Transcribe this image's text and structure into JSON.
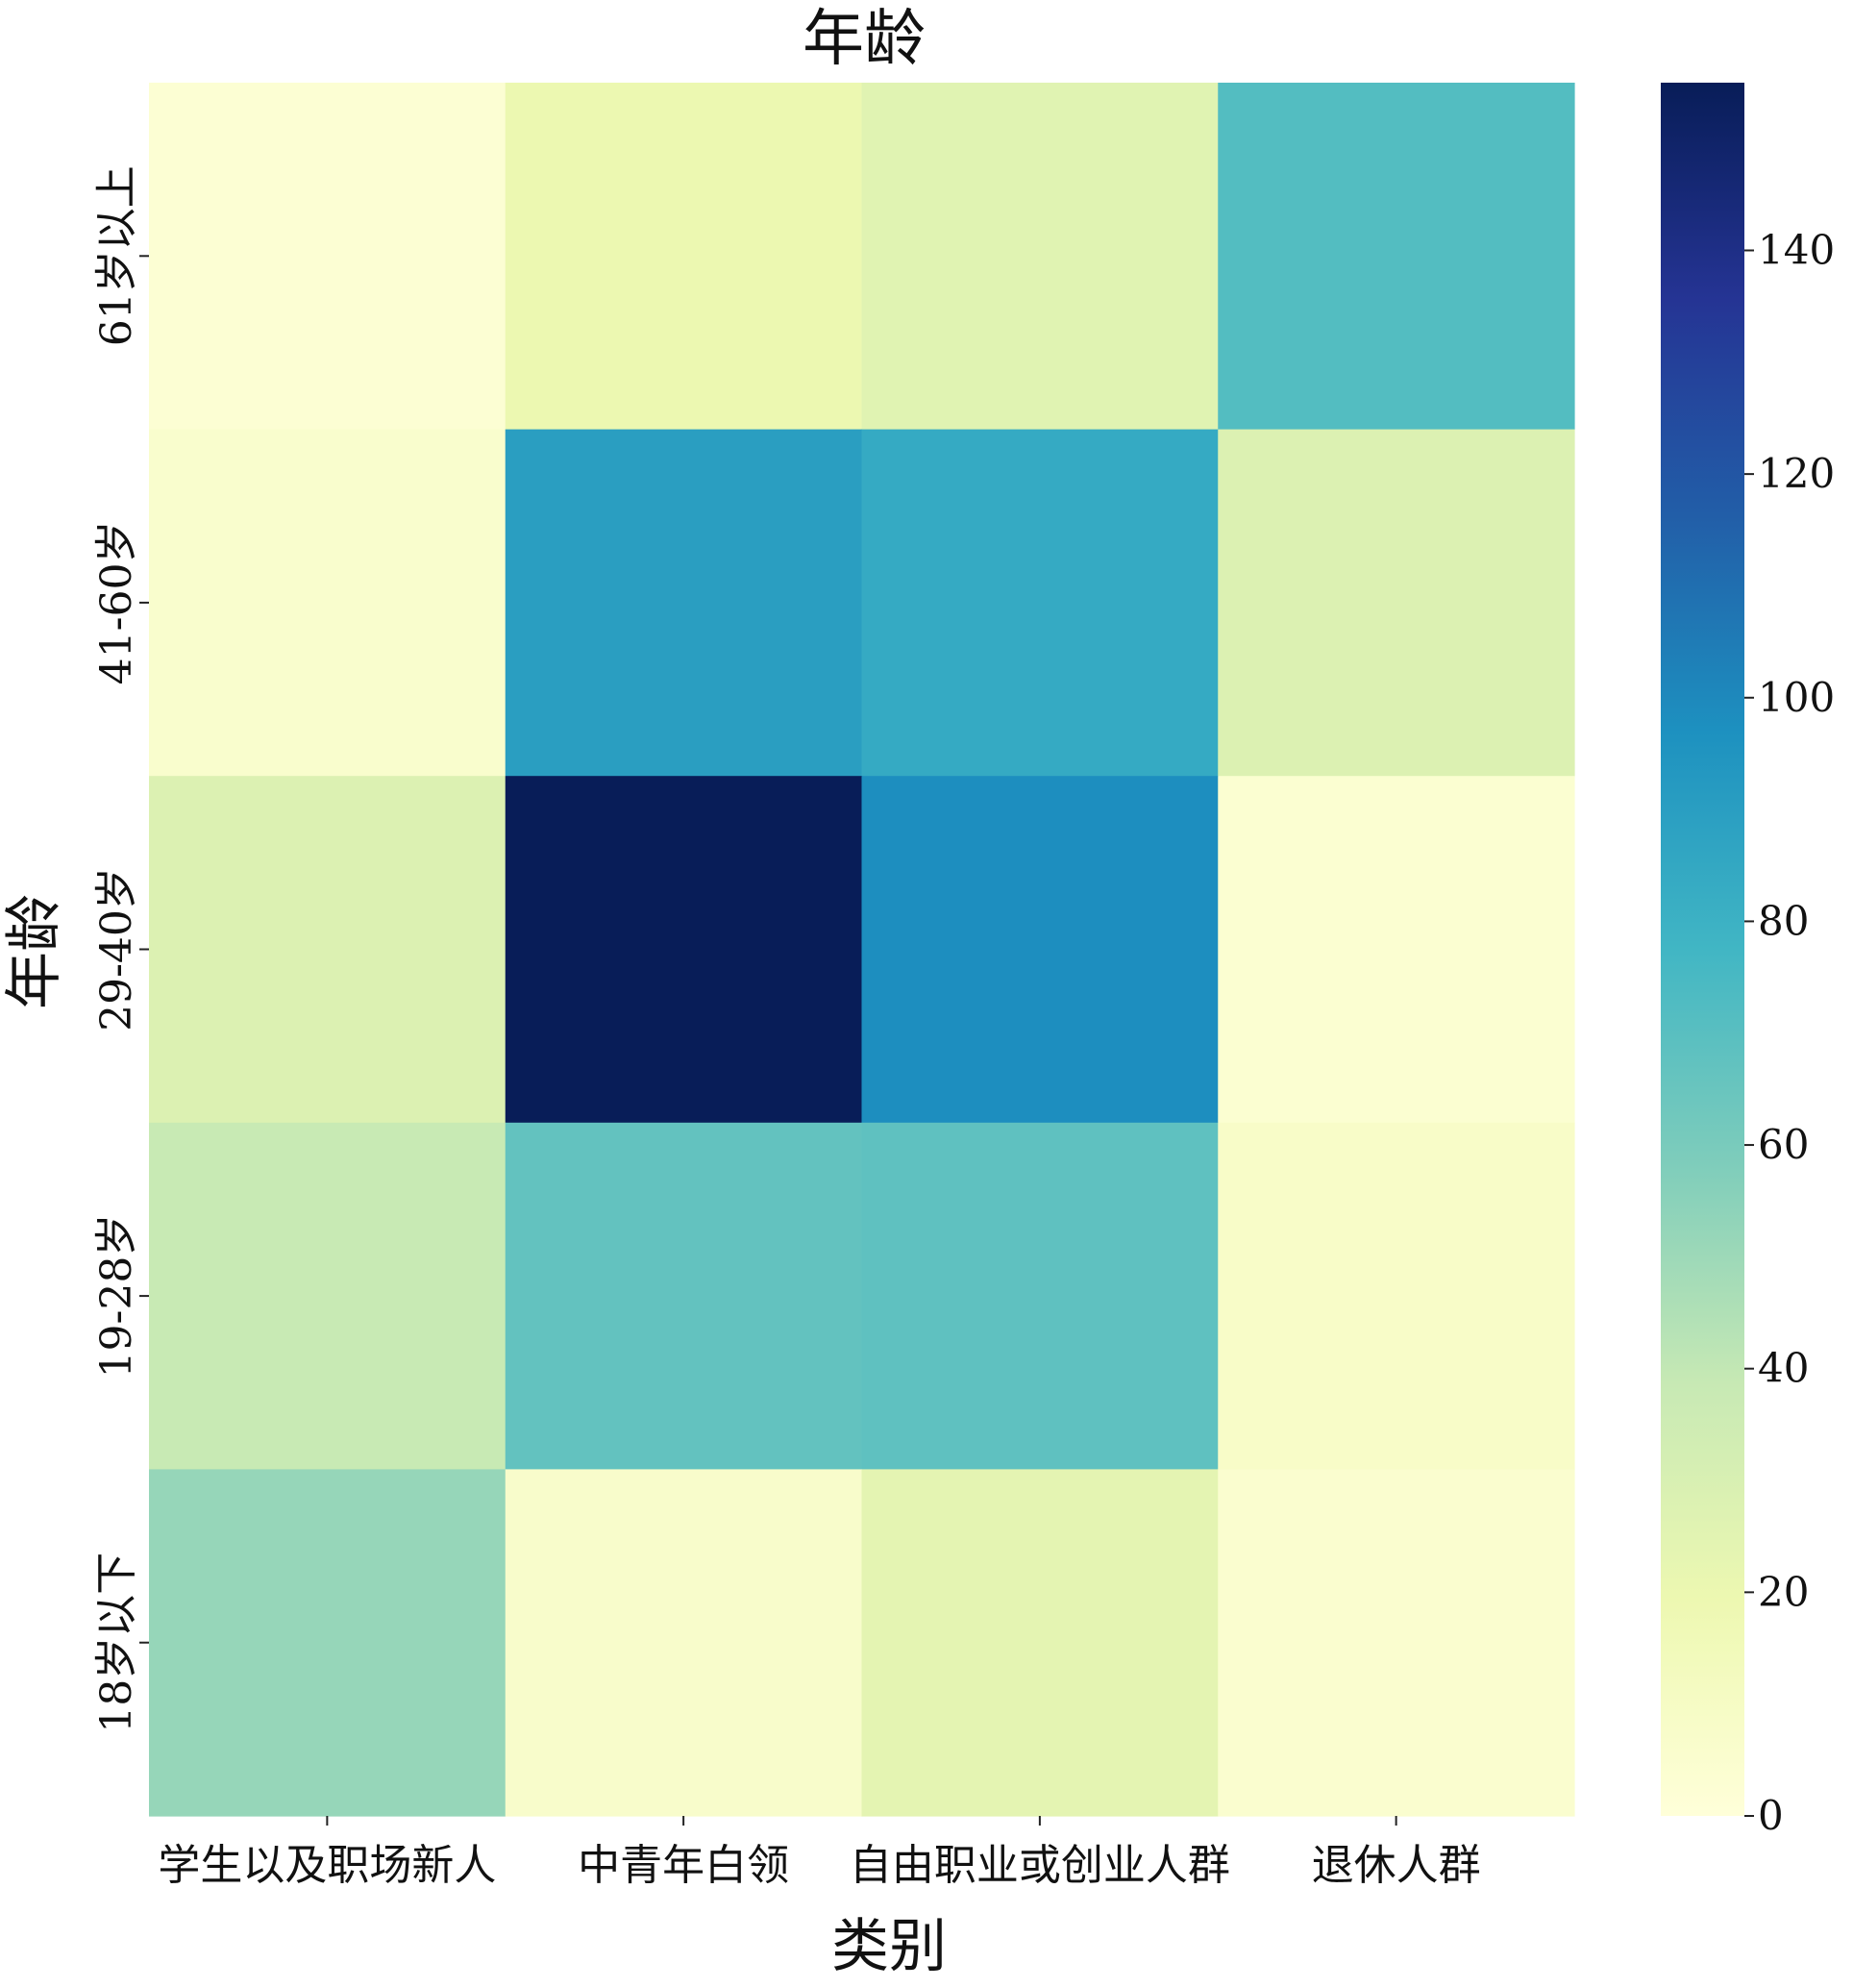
{
  "chart_data": {
    "type": "heatmap",
    "title": "年龄",
    "xlabel": "类别",
    "ylabel": "年龄",
    "x_categories": [
      "学生以及职场新人",
      "中青年白领",
      "自由职业或创业人群",
      "退休人群"
    ],
    "y_categories": [
      "61岁以上",
      "41-60岁",
      "29-40岁",
      "19-28岁",
      "18岁以下"
    ],
    "values": [
      [
        3,
        20,
        26,
        72
      ],
      [
        6,
        90,
        84,
        28
      ],
      [
        28,
        155,
        98,
        4
      ],
      [
        38,
        67,
        68,
        8
      ],
      [
        52,
        7,
        24,
        5
      ]
    ],
    "colorbar": {
      "min": 0,
      "max": 155,
      "ticks": [
        0,
        20,
        40,
        60,
        80,
        100,
        120,
        140
      ],
      "colormap": "YlGnBu"
    }
  }
}
